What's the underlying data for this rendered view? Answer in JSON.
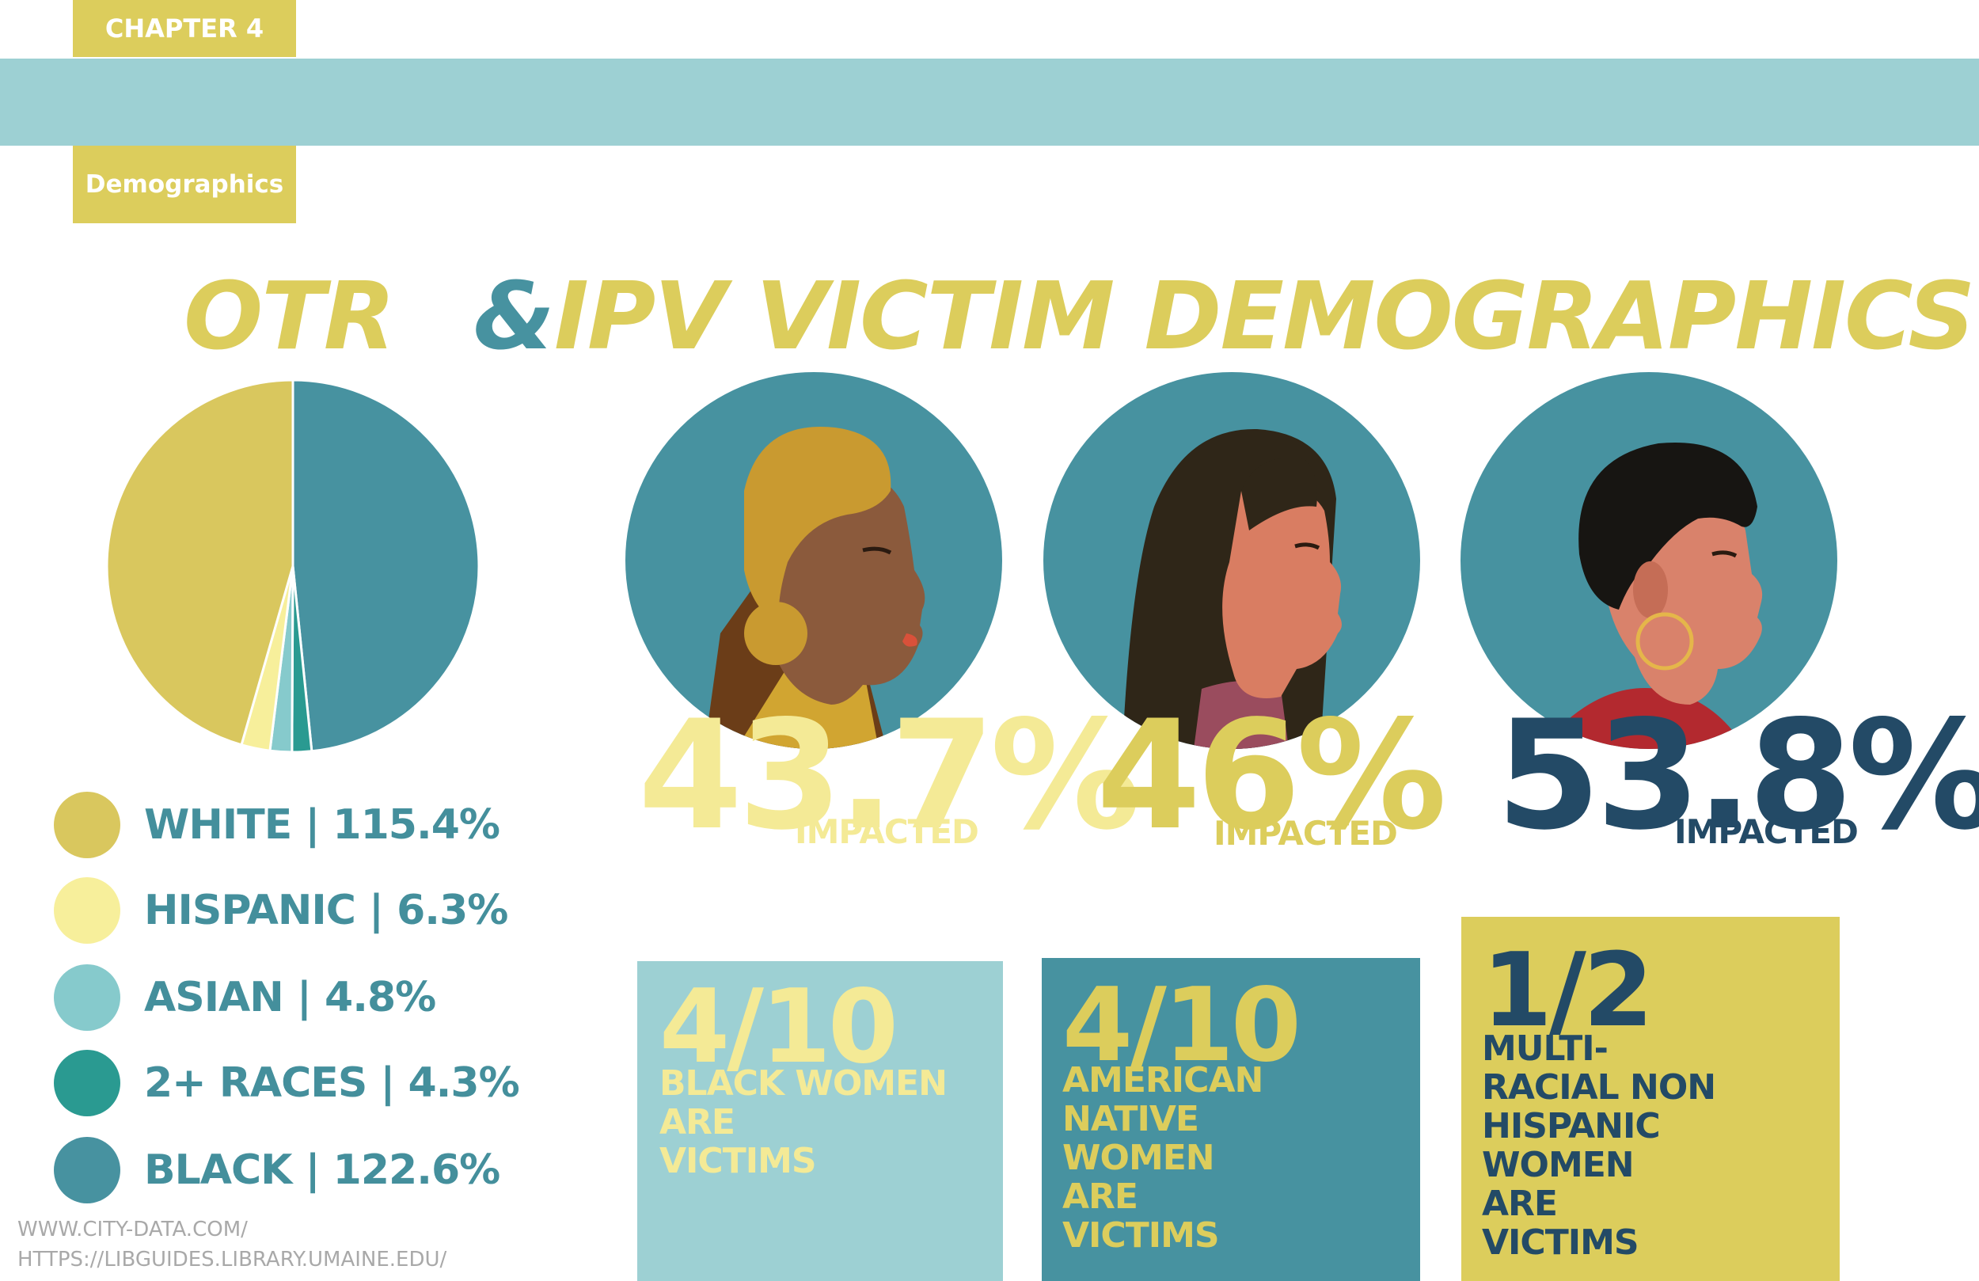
{
  "header": {
    "chapter": "CHAPTER 4",
    "section": "Demographics"
  },
  "title": {
    "part1": "OTR",
    "amp": "&",
    "part2": "IPV VICTIM DEMOGRAPHICS"
  },
  "colors": {
    "gold": "#dccd5c",
    "pale_yellow": "#f4ea96",
    "teal": "#4792a0",
    "light_teal": "#9dd0d3",
    "navy": "#234a66"
  },
  "chart_data": {
    "type": "pie",
    "categories": [
      "WHITE",
      "HISPANIC",
      "ASIAN",
      "2+ RACES",
      "BLACK"
    ],
    "values": [
      115.4,
      6.3,
      4.8,
      4.3,
      122.6
    ],
    "value_labels": [
      "115.4%",
      "6.3%",
      "4.8%",
      "4.3%",
      "122.6%"
    ],
    "colors": [
      "#d9c75e",
      "#f7ef9b",
      "#86cacc",
      "#2a9a91",
      "#4792a0"
    ],
    "legend": [
      "WHITE | 115.4%",
      "HISPANIC | 6.3%",
      "ASIAN | 4.8%",
      "2+ RACES | 4.3%",
      "BLACK | 122.6%"
    ]
  },
  "stats": [
    {
      "value": "43.7%",
      "label": "IMPACTED",
      "icon": "black-woman-portrait-icon"
    },
    {
      "value": "46%",
      "label": "IMPACTED",
      "icon": "american-native-woman-portrait-icon"
    },
    {
      "value": "53.8%",
      "label": "IMPACTED",
      "icon": "multiracial-woman-portrait-icon"
    }
  ],
  "boxes": [
    {
      "fraction": "4/10",
      "lines": [
        "BLACK WOMEN",
        "ARE",
        "VICTIMS"
      ]
    },
    {
      "fraction": "4/10",
      "lines": [
        "AMERICAN",
        "NATIVE",
        "WOMEN",
        "ARE",
        "VICTIMS"
      ]
    },
    {
      "fraction": "1/2",
      "lines": [
        "MULTI-",
        "RACIAL NON",
        "HISPANIC",
        "WOMEN",
        "ARE",
        "VICTIMS"
      ]
    }
  ],
  "sources": [
    "WWW.CITY-DATA.COM/",
    "HTTPS://LIBGUIDES.LIBRARY.UMAINE.EDU/"
  ]
}
